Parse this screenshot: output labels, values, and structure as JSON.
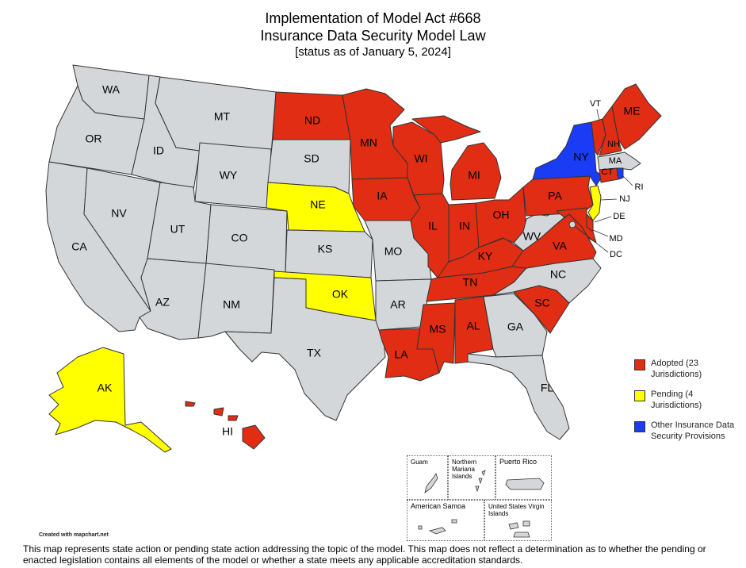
{
  "title": {
    "line1": "Implementation of Model Act #668",
    "line2": "Insurance Data Security Model Law",
    "line3": "[status as of January 5, 2024]"
  },
  "colors": {
    "adopted": "#e02d14",
    "pending": "#ffff00",
    "other": "#1a3cf5",
    "none": "#d4d7da",
    "border": "#333333"
  },
  "legend": [
    {
      "key": "adopted",
      "label": "Adopted (23 Jurisdictions)",
      "color": "#e02d14"
    },
    {
      "key": "pending",
      "label": "Pending (4 Jurisdictions)",
      "color": "#ffff00"
    },
    {
      "key": "other",
      "label": "Other Insurance Data Security Provisions",
      "color": "#1a3cf5"
    }
  ],
  "state_labels": {
    "WA": "WA",
    "OR": "OR",
    "CA": "CA",
    "ID": "ID",
    "NV": "NV",
    "MT": "MT",
    "WY": "WY",
    "UT": "UT",
    "AZ": "AZ",
    "CO": "CO",
    "NM": "NM",
    "ND": "ND",
    "SD": "SD",
    "NE": "NE",
    "KS": "KS",
    "OK": "OK",
    "TX": "TX",
    "MN": "MN",
    "IA": "IA",
    "MO": "MO",
    "AR": "AR",
    "LA": "LA",
    "WI": "WI",
    "IL": "IL",
    "MS": "MS",
    "MI": "MI",
    "IN": "IN",
    "KY": "KY",
    "TN": "TN",
    "AL": "AL",
    "OH": "OH",
    "GA": "GA",
    "FL": "FL",
    "SC": "SC",
    "NC": "NC",
    "VA": "VA",
    "WV": "WV",
    "PA": "PA",
    "NY": "NY",
    "VT": "VT",
    "NH": "NH",
    "ME": "ME",
    "MA": "MA",
    "CT": "CT",
    "RI": "RI",
    "NJ": "NJ",
    "DE": "DE",
    "MD": "MD",
    "DC": "DC",
    "AK": "AK",
    "HI": "HI"
  },
  "state_status": {
    "WA": "none",
    "OR": "none",
    "CA": "none",
    "ID": "none",
    "NV": "none",
    "MT": "none",
    "WY": "none",
    "UT": "none",
    "AZ": "none",
    "CO": "none",
    "NM": "none",
    "ND": "adopted",
    "SD": "none",
    "NE": "pending",
    "KS": "none",
    "OK": "pending",
    "TX": "none",
    "MN": "adopted",
    "IA": "adopted",
    "MO": "none",
    "AR": "none",
    "LA": "adopted",
    "WI": "adopted",
    "IL": "adopted",
    "MS": "adopted",
    "MI": "adopted",
    "IN": "adopted",
    "KY": "adopted",
    "TN": "adopted",
    "AL": "adopted",
    "OH": "adopted",
    "GA": "none",
    "FL": "none",
    "SC": "adopted",
    "NC": "none",
    "VA": "adopted",
    "WV": "none",
    "PA": "adopted",
    "NY": "other",
    "VT": "adopted",
    "NH": "adopted",
    "ME": "adopted",
    "MA": "none",
    "CT": "adopted",
    "RI": "other",
    "NJ": "pending",
    "DE": "adopted",
    "MD": "adopted",
    "DC": "none",
    "AK": "pending",
    "HI": "adopted"
  },
  "territories": {
    "guam": "Guam",
    "cnmi": "Northern Mariana Islands",
    "puerto_rico": "Puerto Rico",
    "american_samoa": "American Samoa",
    "usvi": "United States Virgin Islands"
  },
  "credit": "Created with mapchart.net",
  "disclaimer": "This map represents state action or pending state action addressing the topic of the model.  This map does not reflect a determination as to whether the pending or enacted legislation contains all elements of the model or whether a state meets any applicable accreditation standards."
}
